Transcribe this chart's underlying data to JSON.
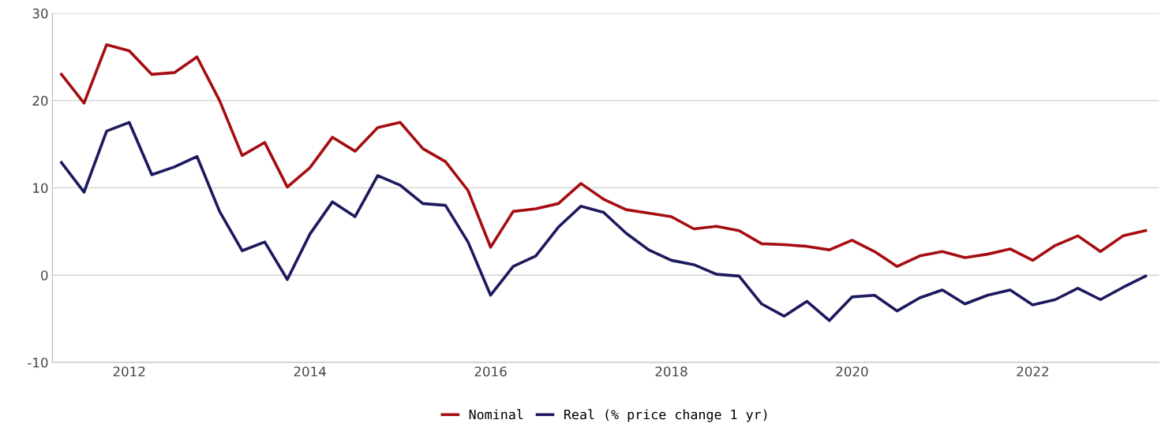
{
  "chart_data": {
    "type": "line",
    "x": [
      2011.25,
      2011.5,
      2011.75,
      2012.0,
      2012.25,
      2012.5,
      2012.75,
      2013.0,
      2013.25,
      2013.5,
      2013.75,
      2014.0,
      2014.25,
      2014.5,
      2014.75,
      2015.0,
      2015.25,
      2015.5,
      2015.75,
      2016.0,
      2016.25,
      2016.5,
      2016.75,
      2017.0,
      2017.25,
      2017.5,
      2017.75,
      2018.0,
      2018.25,
      2018.5,
      2018.75,
      2019.0,
      2019.25,
      2019.5,
      2019.75,
      2020.0,
      2020.25,
      2020.5,
      2020.75,
      2021.0,
      2021.25,
      2021.5,
      2021.75,
      2022.0,
      2022.25,
      2022.5,
      2022.75,
      2023.0,
      2023.25
    ],
    "series": [
      {
        "name": "Nominal",
        "color": "#a50d12",
        "values": [
          23.0,
          19.7,
          26.4,
          25.7,
          23.0,
          23.2,
          25.0,
          20.0,
          13.7,
          15.2,
          10.1,
          12.3,
          15.8,
          14.2,
          16.9,
          17.5,
          14.5,
          13.0,
          9.7,
          3.2,
          7.3,
          7.6,
          8.2,
          10.5,
          8.7,
          7.5,
          7.1,
          6.7,
          5.3,
          5.6,
          5.1,
          3.6,
          3.5,
          3.3,
          2.9,
          4.0,
          2.7,
          1.0,
          2.2,
          2.7,
          2.0,
          2.4,
          3.0,
          1.7,
          3.4,
          4.5,
          2.7,
          4.5,
          5.1
        ]
      },
      {
        "name": "Real (% price change 1 yr)",
        "color": "#1c1a5e",
        "values": [
          12.9,
          9.5,
          16.5,
          17.5,
          11.5,
          12.4,
          13.6,
          7.3,
          2.8,
          3.8,
          -0.5,
          4.7,
          8.4,
          6.7,
          11.4,
          10.3,
          8.2,
          8.0,
          3.8,
          -2.3,
          1.0,
          2.2,
          5.5,
          7.9,
          7.2,
          4.8,
          2.9,
          1.7,
          1.2,
          0.1,
          -0.1,
          -3.3,
          -4.7,
          -3.0,
          -5.2,
          -2.5,
          -2.3,
          -4.1,
          -2.6,
          -1.7,
          -3.3,
          -2.3,
          -1.7,
          -3.4,
          -2.8,
          -1.5,
          -2.8,
          -1.4,
          -0.1
        ]
      }
    ],
    "xlim": [
      2011.15,
      2023.4
    ],
    "xticks": [
      2012,
      2014,
      2016,
      2018,
      2020,
      2022
    ],
    "ylim": [
      -10,
      30
    ],
    "yticks": [
      -10,
      0,
      10,
      20,
      30
    ],
    "grid": "y",
    "legend": "bottom",
    "marker": "none",
    "line_style": "solid"
  }
}
